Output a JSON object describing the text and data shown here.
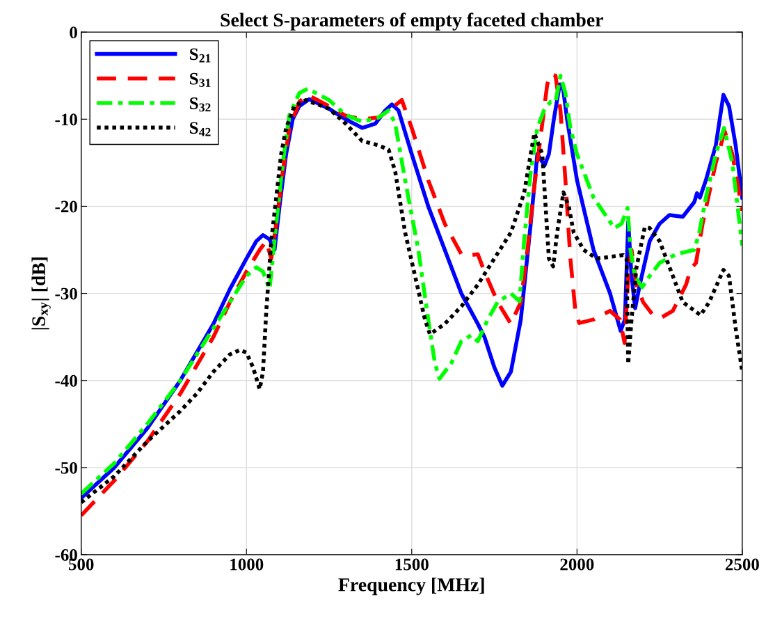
{
  "chart_data": {
    "type": "line",
    "title": "Select S-parameters of empty faceted chamber",
    "xlabel": "Frequency [MHz]",
    "ylabel": "|S$_{xy}$| [dB]",
    "xlim": [
      500,
      2500
    ],
    "ylim": [
      -60,
      0
    ],
    "xticks": [
      500,
      1000,
      1500,
      2000,
      2500
    ],
    "yticks": [
      -60,
      -50,
      -40,
      -30,
      -20,
      -10,
      0
    ],
    "grid": true,
    "legend": "top left",
    "series": [
      {
        "name": "S$_{21}$",
        "color": "#0000ff",
        "line_style": "solid",
        "x": [
          500,
          600,
          700,
          800,
          900,
          950,
          1000,
          1030,
          1050,
          1070,
          1085,
          1100,
          1120,
          1140,
          1160,
          1190,
          1250,
          1300,
          1350,
          1390,
          1420,
          1440,
          1460,
          1500,
          1550,
          1600,
          1650,
          1700,
          1720,
          1750,
          1774,
          1800,
          1830,
          1860,
          1880,
          1902,
          1915,
          1930,
          1948,
          1958,
          1970,
          2000,
          2050,
          2100,
          2132,
          2145,
          2155,
          2165,
          2176,
          2190,
          2220,
          2250,
          2280,
          2320,
          2355,
          2363,
          2372,
          2390,
          2420,
          2443,
          2460,
          2480,
          2500
        ],
        "values": [
          -53.5,
          -50,
          -45.5,
          -40,
          -33.5,
          -29.5,
          -26,
          -24,
          -23.3,
          -23.8,
          -25,
          -20,
          -14,
          -10,
          -8.5,
          -7.7,
          -8.8,
          -10,
          -11,
          -10.5,
          -9,
          -8.3,
          -9,
          -14,
          -20,
          -25,
          -30,
          -33.5,
          -35,
          -38.5,
          -40.6,
          -39,
          -33,
          -22,
          -14,
          -15.3,
          -14,
          -10,
          -6,
          -6.5,
          -10,
          -17,
          -25,
          -30,
          -34.3,
          -33,
          -21.8,
          -28,
          -31.7,
          -29,
          -24,
          -22,
          -21,
          -21.2,
          -19.5,
          -18.5,
          -19,
          -17,
          -13,
          -7.2,
          -8.5,
          -13,
          -19
        ]
      },
      {
        "name": "S$_{31}$",
        "color": "#ff0000",
        "line_style": "dashed",
        "x": [
          500,
          600,
          700,
          800,
          900,
          950,
          1000,
          1040,
          1060,
          1075,
          1090,
          1110,
          1130,
          1160,
          1185,
          1250,
          1300,
          1350,
          1400,
          1440,
          1470,
          1500,
          1550,
          1600,
          1650,
          1679,
          1700,
          1720,
          1760,
          1800,
          1830,
          1850,
          1870,
          1890,
          1910,
          1920,
          1935,
          1950,
          1965,
          1980,
          1995,
          2007,
          2050,
          2100,
          2130,
          2144,
          2155,
          2165,
          2180,
          2200,
          2230,
          2254,
          2290,
          2330,
          2344,
          2360,
          2380,
          2420,
          2447,
          2470,
          2500
        ],
        "values": [
          -55.5,
          -51.5,
          -47,
          -41.5,
          -35,
          -31,
          -27.5,
          -25,
          -24,
          -26,
          -22,
          -16,
          -11,
          -8,
          -7.2,
          -8.5,
          -9.6,
          -10,
          -9.8,
          -8.7,
          -7.8,
          -11,
          -17,
          -22,
          -25.5,
          -25.6,
          -25.5,
          -27.5,
          -31,
          -33.5,
          -31,
          -25,
          -18,
          -12,
          -6,
          -4.8,
          -5,
          -9,
          -17,
          -26,
          -32,
          -33.4,
          -33,
          -32,
          -33,
          -35.7,
          -28,
          -25,
          -29,
          -31,
          -32.5,
          -32.8,
          -32,
          -29,
          -27.2,
          -26.5,
          -22,
          -15,
          -11.4,
          -14,
          -20.5
        ]
      },
      {
        "name": "S$_{32}$",
        "color": "#00ff00",
        "line_style": "dashdot",
        "x": [
          500,
          600,
          700,
          800,
          900,
          950,
          1000,
          1030,
          1050,
          1070,
          1090,
          1110,
          1130,
          1160,
          1185,
          1250,
          1300,
          1350,
          1400,
          1430,
          1450,
          1480,
          1520,
          1550,
          1570,
          1584,
          1620,
          1650,
          1680,
          1700,
          1730,
          1760,
          1800,
          1826,
          1840,
          1860,
          1880,
          1900,
          1920,
          1935,
          1950,
          1965,
          1980,
          2000,
          2050,
          2113,
          2135,
          2153,
          2162,
          2175,
          2197,
          2220,
          2250,
          2300,
          2355,
          2370,
          2390,
          2420,
          2445,
          2470,
          2500
        ],
        "values": [
          -53,
          -49.5,
          -45,
          -40,
          -34,
          -31,
          -28,
          -27,
          -27.5,
          -29.5,
          -22,
          -15,
          -9.5,
          -7,
          -6.5,
          -7.8,
          -9.5,
          -10.3,
          -9.8,
          -9,
          -10.5,
          -17,
          -25,
          -33,
          -38,
          -39.8,
          -38,
          -35.5,
          -34.8,
          -35.5,
          -33,
          -31,
          -30,
          -30.9,
          -24,
          -16,
          -11,
          -9,
          -8,
          -8,
          -5,
          -7,
          -11,
          -14,
          -19,
          -22.5,
          -22,
          -20.2,
          -25,
          -28,
          -29.3,
          -28,
          -26.5,
          -25.5,
          -25,
          -23,
          -19,
          -14,
          -11,
          -15,
          -24.5
        ]
      },
      {
        "name": "S$_{42}$",
        "color": "#000000",
        "line_style": "dotted",
        "x": [
          500,
          600,
          700,
          800,
          850,
          900,
          950,
          980,
          1000,
          1020,
          1040,
          1050,
          1060,
          1075,
          1090,
          1105,
          1120,
          1145,
          1180,
          1250,
          1300,
          1350,
          1400,
          1430,
          1450,
          1480,
          1510,
          1540,
          1555,
          1600,
          1650,
          1700,
          1750,
          1800,
          1840,
          1860,
          1871,
          1895,
          1905,
          1915,
          1928,
          1940,
          1959,
          1975,
          1990,
          2020,
          2060,
          2100,
          2140,
          2150,
          2155,
          2165,
          2180,
          2205,
          2220,
          2250,
          2290,
          2320,
          2374,
          2400,
          2443,
          2460,
          2480,
          2500
        ],
        "values": [
          -54,
          -51,
          -47,
          -43.5,
          -41.5,
          -39,
          -37,
          -36.5,
          -36.8,
          -38.5,
          -41,
          -39,
          -32,
          -24,
          -19,
          -14,
          -11,
          -8.5,
          -7.8,
          -8.8,
          -10.5,
          -12.5,
          -13,
          -13.5,
          -16,
          -23,
          -28,
          -33,
          -34.7,
          -33.5,
          -31.5,
          -29,
          -26,
          -23,
          -18.5,
          -14,
          -11.6,
          -14,
          -20,
          -26,
          -26.9,
          -23,
          -18.4,
          -20,
          -23,
          -25,
          -26,
          -25.8,
          -25.6,
          -26,
          -38.1,
          -33,
          -27,
          -22.4,
          -22.5,
          -24,
          -28,
          -31,
          -32.5,
          -31,
          -27.3,
          -28,
          -34,
          -39
        ]
      }
    ]
  }
}
